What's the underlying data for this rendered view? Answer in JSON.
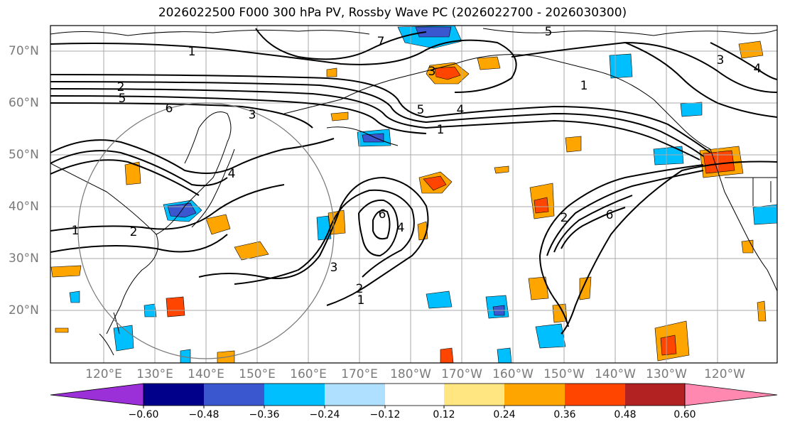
{
  "title": "2026022500 F000 300 hPa PV, Rossby Wave PC (2026022700 - 2026030300)",
  "lat_labels": [
    "70°N",
    "60°N",
    "50°N",
    "40°N",
    "30°N",
    "20°N"
  ],
  "lon_labels": [
    "120°E",
    "130°E",
    "140°E",
    "150°E",
    "160°E",
    "170°E",
    "180°W",
    "170°W",
    "160°W",
    "150°W",
    "140°W",
    "130°W",
    "120°W"
  ],
  "colorbar": {
    "colors": [
      "#9b30d8",
      "#00008b",
      "#3a57d0",
      "#00bfff",
      "#b0e0ff",
      "#ffffff",
      "#ffe680",
      "#ffa500",
      "#ff4500",
      "#b22222",
      "#ff88b0"
    ],
    "tick_labels": [
      "−0.60",
      "−0.48",
      "−0.36",
      "−0.24",
      "−0.12",
      "0.12",
      "0.24",
      "0.36",
      "0.48",
      "0.60"
    ]
  },
  "contour_labels": [
    "1",
    "2",
    "3",
    "4",
    "5",
    "6",
    "7",
    "5",
    "1",
    "1",
    "2",
    "6",
    "3",
    "4",
    "2",
    "1",
    "3",
    "4",
    "5",
    "6",
    "1",
    "2",
    "3",
    "4"
  ]
}
